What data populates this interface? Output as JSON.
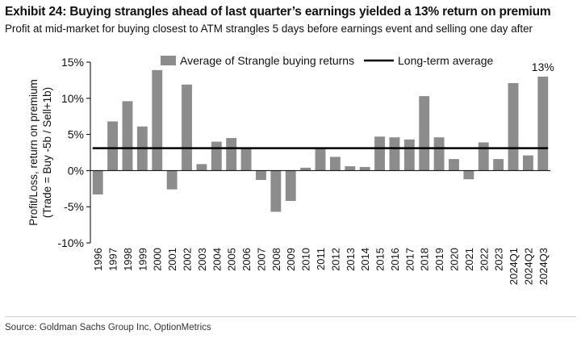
{
  "header": {
    "title": "Exhibit 24: Buying strangles ahead of last quarter’s earnings yielded a 13% return on premium",
    "subtitle": "Profit at mid-market for buying closest to ATM strangles 5 days before earnings event and selling one day after"
  },
  "footer": {
    "source": "Source: Goldman Sachs Group Inc, OptionMetrics"
  },
  "chart_data": {
    "type": "bar",
    "categories": [
      "1996",
      "1997",
      "1998",
      "1999",
      "2000",
      "2001",
      "2002",
      "2003",
      "2004",
      "2005",
      "2006",
      "2007",
      "2008",
      "2009",
      "2010",
      "2011",
      "2012",
      "2013",
      "2014",
      "2015",
      "2016",
      "2017",
      "2018",
      "2019",
      "2020",
      "2021",
      "2022",
      "2023",
      "2024Q1",
      "2024Q2",
      "2024Q3"
    ],
    "series": [
      {
        "name": "Average of Strangle buying returns",
        "color": "#8c8c8c",
        "values": [
          -3.3,
          6.8,
          9.6,
          6.1,
          13.9,
          -2.6,
          11.9,
          0.9,
          4.0,
          4.5,
          3.0,
          -1.3,
          -5.7,
          -4.2,
          0.4,
          3.2,
          1.9,
          0.6,
          0.5,
          4.7,
          4.6,
          4.3,
          10.3,
          4.6,
          1.6,
          -1.2,
          3.9,
          1.6,
          12.1,
          2.1,
          13.0
        ]
      }
    ],
    "reference_line": {
      "name": "Long-term average",
      "value": 3.1,
      "color": "#000000"
    },
    "annotations": [
      {
        "category": "2024Q3",
        "text": "13%"
      }
    ],
    "title": "Exhibit 24: Buying strangles ahead of last quarter’s earnings yielded a 13% return on premium",
    "xlabel": "",
    "ylabel_lines": [
      "Profit/Loss, return on premium",
      "(Trade = Buy -5b / Sell+1b)"
    ],
    "ylim": [
      -10,
      15
    ],
    "yticks": [
      -10,
      -5,
      0,
      5,
      10,
      15
    ],
    "ytick_labels": [
      "-10%",
      "-5%",
      "0%",
      "5%",
      "10%",
      "15%"
    ],
    "grid": false,
    "legend_position": "top"
  }
}
